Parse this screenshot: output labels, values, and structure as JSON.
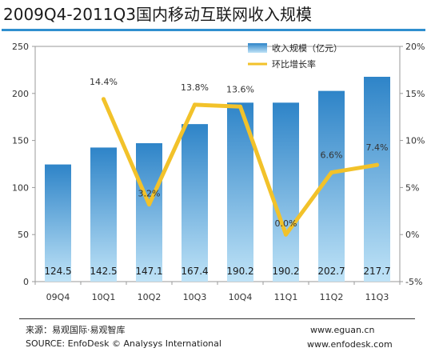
{
  "title": "2009Q4-2011Q3国内移动互联网收入规模",
  "footer": {
    "source_cn": "来源：易观国际·易观智库",
    "source_en": "SOURCE: EnfoDesk © Analysys International",
    "url1": "www.eguan.cn",
    "url2": "www.enfodesk.com"
  },
  "chart_data": {
    "type": "bar",
    "categories": [
      "09Q4",
      "10Q1",
      "10Q2",
      "10Q3",
      "10Q4",
      "11Q1",
      "11Q2",
      "11Q3"
    ],
    "series": [
      {
        "name": "收入规模（亿元）",
        "type": "bar",
        "axis": "left",
        "values": [
          124.5,
          142.5,
          147.1,
          167.4,
          190.2,
          190.2,
          202.7,
          217.7
        ],
        "labels": [
          "124.5",
          "142.5",
          "147.1",
          "167.4",
          "190.2",
          "190.2",
          "202.7",
          "217.7"
        ]
      },
      {
        "name": "环比增长率",
        "type": "line",
        "axis": "right",
        "values": [
          null,
          14.4,
          3.2,
          13.8,
          13.6,
          0.0,
          6.6,
          7.4
        ],
        "labels": [
          "",
          "14.4%",
          "3.2%",
          "13.8%",
          "13.6%",
          "0.0%",
          "6.6%",
          "7.4%"
        ]
      }
    ],
    "y_left": {
      "min": 0,
      "max": 250,
      "ticks": [
        "0",
        "50",
        "100",
        "150",
        "200",
        "250"
      ]
    },
    "y_right": {
      "min": -5,
      "max": 20,
      "ticks": [
        "-5%",
        "0%",
        "5%",
        "10%",
        "15%",
        "20%"
      ]
    },
    "legend_position": "top-right",
    "colors": {
      "bar_top": "#2e84c8",
      "bar_bottom": "#bfe3f7",
      "line": "#f2c22a",
      "title_rule": "#2f8fcf"
    }
  }
}
